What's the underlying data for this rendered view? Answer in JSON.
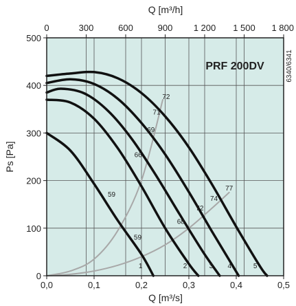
{
  "chart_data": {
    "type": "line",
    "title": "PRF 200DV",
    "side_code": "6340/6341",
    "xlabel": "Q [m³/s]",
    "x2label": "Q [m³/h]",
    "ylabel": "Ps [Pa]",
    "xlim": [
      0,
      0.5
    ],
    "ylim": [
      0,
      500
    ],
    "x2lim": [
      0,
      1800
    ],
    "x_ticks": [
      {
        "v": 0.0,
        "label": "0,0"
      },
      {
        "v": 0.1,
        "label": "0,1"
      },
      {
        "v": 0.2,
        "label": "0,2"
      },
      {
        "v": 0.3,
        "label": "0,3"
      },
      {
        "v": 0.4,
        "label": "0,4"
      },
      {
        "v": 0.5,
        "label": "0,5"
      }
    ],
    "x2_ticks": [
      {
        "v": 0,
        "label": "0"
      },
      {
        "v": 300,
        "label": "300"
      },
      {
        "v": 600,
        "label": "600"
      },
      {
        "v": 900,
        "label": "900"
      },
      {
        "v": 1200,
        "label": "1 200"
      },
      {
        "v": 1500,
        "label": "1 500"
      },
      {
        "v": 1800,
        "label": "1 800"
      }
    ],
    "y_ticks": [
      {
        "v": 0,
        "label": "0"
      },
      {
        "v": 100,
        "label": "100"
      },
      {
        "v": 200,
        "label": "200"
      },
      {
        "v": 300,
        "label": "300"
      },
      {
        "v": 400,
        "label": "400"
      },
      {
        "v": 500,
        "label": "500"
      }
    ],
    "grid": true,
    "colors": {
      "plot_bg": "#d6ebe8",
      "grid": "#555555",
      "fan_curve": "#111111",
      "system_curve": "#a8a8a8"
    },
    "series": [
      {
        "name": "1",
        "points": [
          [
            0.0,
            300
          ],
          [
            0.05,
            263
          ],
          [
            0.1,
            193
          ],
          [
            0.15,
            116
          ],
          [
            0.2,
            45
          ],
          [
            0.225,
            0
          ]
        ]
      },
      {
        "name": "2",
        "points": [
          [
            0.0,
            370
          ],
          [
            0.05,
            364
          ],
          [
            0.1,
            330
          ],
          [
            0.15,
            268
          ],
          [
            0.2,
            188
          ],
          [
            0.25,
            100
          ],
          [
            0.3,
            25
          ],
          [
            0.32,
            0
          ]
        ]
      },
      {
        "name": "3",
        "points": [
          [
            0.0,
            385
          ],
          [
            0.03,
            393
          ],
          [
            0.08,
            383
          ],
          [
            0.13,
            346
          ],
          [
            0.18,
            287
          ],
          [
            0.23,
            212
          ],
          [
            0.28,
            130
          ],
          [
            0.33,
            50
          ],
          [
            0.365,
            0
          ]
        ]
      },
      {
        "name": "4",
        "points": [
          [
            0.0,
            405
          ],
          [
            0.05,
            413
          ],
          [
            0.1,
            403
          ],
          [
            0.15,
            372
          ],
          [
            0.2,
            321
          ],
          [
            0.25,
            255
          ],
          [
            0.3,
            176
          ],
          [
            0.35,
            91
          ],
          [
            0.39,
            25
          ],
          [
            0.405,
            0
          ]
        ]
      },
      {
        "name": "5",
        "points": [
          [
            0.0,
            420
          ],
          [
            0.05,
            425
          ],
          [
            0.1,
            428
          ],
          [
            0.15,
            415
          ],
          [
            0.2,
            384
          ],
          [
            0.25,
            335
          ],
          [
            0.3,
            270
          ],
          [
            0.35,
            190
          ],
          [
            0.4,
            103
          ],
          [
            0.45,
            20
          ],
          [
            0.465,
            0
          ]
        ]
      },
      {
        "name": "system-steep",
        "points": [
          [
            0.0,
            0
          ],
          [
            0.05,
            10
          ],
          [
            0.1,
            35
          ],
          [
            0.15,
            95
          ],
          [
            0.2,
            200
          ],
          [
            0.245,
            370
          ]
        ]
      },
      {
        "name": "system-flat",
        "points": [
          [
            0.0,
            0
          ],
          [
            0.05,
            3
          ],
          [
            0.1,
            10
          ],
          [
            0.15,
            22
          ],
          [
            0.2,
            40
          ],
          [
            0.25,
            65
          ],
          [
            0.3,
            100
          ],
          [
            0.35,
            143
          ],
          [
            0.385,
            175
          ]
        ]
      }
    ],
    "curve_labels": [
      {
        "text": "1",
        "x": 0.198,
        "y": 22
      },
      {
        "text": "2",
        "x": 0.292,
        "y": 22
      },
      {
        "text": "3",
        "x": 0.347,
        "y": 22
      },
      {
        "text": "4",
        "x": 0.386,
        "y": 22
      },
      {
        "text": "5",
        "x": 0.44,
        "y": 22
      },
      {
        "text": "59",
        "x": 0.137,
        "y": 172
      },
      {
        "text": "66",
        "x": 0.193,
        "y": 255
      },
      {
        "text": "69",
        "x": 0.22,
        "y": 308
      },
      {
        "text": "71",
        "x": 0.232,
        "y": 345
      },
      {
        "text": "72",
        "x": 0.252,
        "y": 377
      },
      {
        "text": "59",
        "x": 0.192,
        "y": 82
      },
      {
        "text": "68",
        "x": 0.283,
        "y": 115
      },
      {
        "text": "72",
        "x": 0.323,
        "y": 143
      },
      {
        "text": "74",
        "x": 0.353,
        "y": 163
      },
      {
        "text": "77",
        "x": 0.385,
        "y": 185
      }
    ]
  }
}
